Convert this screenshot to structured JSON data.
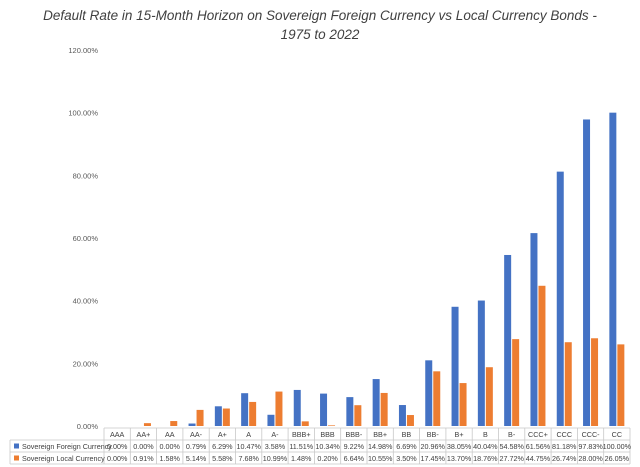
{
  "chart_data": {
    "type": "bar",
    "title_line1": "Default Rate in 15-Month Horizon  on Sovereign Foreign Currency vs Local Currency Bonds -",
    "title_line2": "1975 to 2022",
    "categories": [
      "AAA",
      "AA+",
      "AA",
      "AA-",
      "A+",
      "A",
      "A-",
      "BBB+",
      "BBB",
      "BBB-",
      "BB+",
      "BB",
      "BB-",
      "B+",
      "B",
      "B-",
      "CCC+",
      "CCC",
      "CCC-",
      "CC"
    ],
    "ylim": [
      0,
      120
    ],
    "yticks": [
      "0.00%",
      "20.00%",
      "40.00%",
      "60.00%",
      "80.00%",
      "100.00%",
      "120.00%"
    ],
    "series": [
      {
        "name": "Sovereign Foreign Currency",
        "color": "#4472C4",
        "values": [
          0.0,
          0.0,
          0.0,
          0.79,
          6.29,
          10.47,
          3.58,
          11.51,
          10.34,
          9.22,
          14.98,
          6.69,
          20.96,
          38.05,
          40.04,
          54.58,
          61.56,
          81.18,
          97.83,
          100.0
        ],
        "labels": [
          "0.00%",
          "0.00%",
          "0.00%",
          "0.79%",
          "6.29%",
          "10.47%",
          "3.58%",
          "11.51%",
          "10.34%",
          "9.22%",
          "14.98%",
          "6.69%",
          "20.96%",
          "38.05%",
          "40.04%",
          "54.58%",
          "61.56%",
          "81.18%",
          "97.83%",
          "100.00%"
        ]
      },
      {
        "name": "Sovereign Local Currency",
        "color": "#ED7D31",
        "values": [
          0.0,
          0.91,
          1.58,
          5.14,
          5.58,
          7.68,
          10.99,
          1.48,
          0.2,
          6.64,
          10.55,
          3.5,
          17.45,
          13.7,
          18.76,
          27.72,
          44.75,
          26.74,
          28.0,
          26.05
        ],
        "labels": [
          "0.00%",
          "0.91%",
          "1.58%",
          "5.14%",
          "5.58%",
          "7.68%",
          "10.99%",
          "1.48%",
          "0.20%",
          "6.64%",
          "10.55%",
          "3.50%",
          "17.45%",
          "13.70%",
          "18.76%",
          "27.72%",
          "44.75%",
          "26.74%",
          "28.00%",
          "26.05%"
        ]
      }
    ],
    "grid": false,
    "legend": "data-table"
  }
}
